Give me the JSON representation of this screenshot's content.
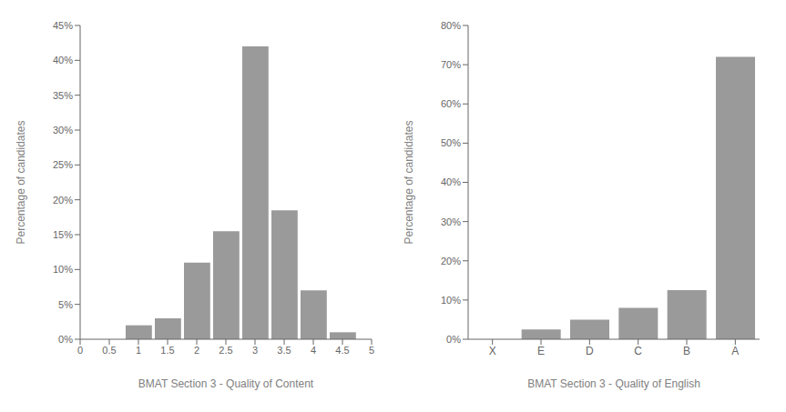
{
  "chart_data": [
    {
      "type": "bar",
      "xlabel": "BMAT Section 3 - Quality of Content",
      "ylabel": "Percentage of candidates",
      "x": [
        0.5,
        1.0,
        1.5,
        2.0,
        2.5,
        3.0,
        3.5,
        4.0,
        4.5
      ],
      "values": [
        0.0,
        2.0,
        3.0,
        11.0,
        15.5,
        42.0,
        18.5,
        7.0,
        1.0
      ],
      "color": "#9a9a9a",
      "xlim": [
        0,
        5
      ],
      "xticks": [
        0,
        0.5,
        1,
        1.5,
        2,
        2.5,
        3,
        3.5,
        4,
        4.5,
        5
      ],
      "ylim": [
        0,
        45
      ],
      "yticks": [
        {
          "value": 0,
          "label": "0%"
        },
        {
          "value": 5,
          "label": "5%"
        },
        {
          "value": 10,
          "label": "10%"
        },
        {
          "value": 15,
          "label": "15%"
        },
        {
          "value": 20,
          "label": "20%"
        },
        {
          "value": 25,
          "label": "25%"
        },
        {
          "value": 30,
          "label": "30%"
        },
        {
          "value": 35,
          "label": "35%"
        },
        {
          "value": 40,
          "label": "40%"
        },
        {
          "value": 45,
          "label": "45%"
        }
      ],
      "grid": false
    },
    {
      "type": "bar",
      "xlabel": "BMAT Section 3 - Quality of English",
      "ylabel": "Percentage of candidates",
      "categories": [
        "X",
        "E",
        "D",
        "C",
        "B",
        "A"
      ],
      "values": [
        0.0,
        2.5,
        5.0,
        8.0,
        12.5,
        72.0
      ],
      "color": "#9a9a9a",
      "ylim": [
        0,
        80
      ],
      "yticks": [
        {
          "value": 0,
          "label": "0%"
        },
        {
          "value": 10,
          "label": "10%"
        },
        {
          "value": 20,
          "label": "20%"
        },
        {
          "value": 30,
          "label": "30%"
        },
        {
          "value": 40,
          "label": "40%"
        },
        {
          "value": 50,
          "label": "50%"
        },
        {
          "value": 60,
          "label": "60%"
        },
        {
          "value": 70,
          "label": "70%"
        },
        {
          "value": 80,
          "label": "80%"
        }
      ],
      "grid": false
    }
  ]
}
